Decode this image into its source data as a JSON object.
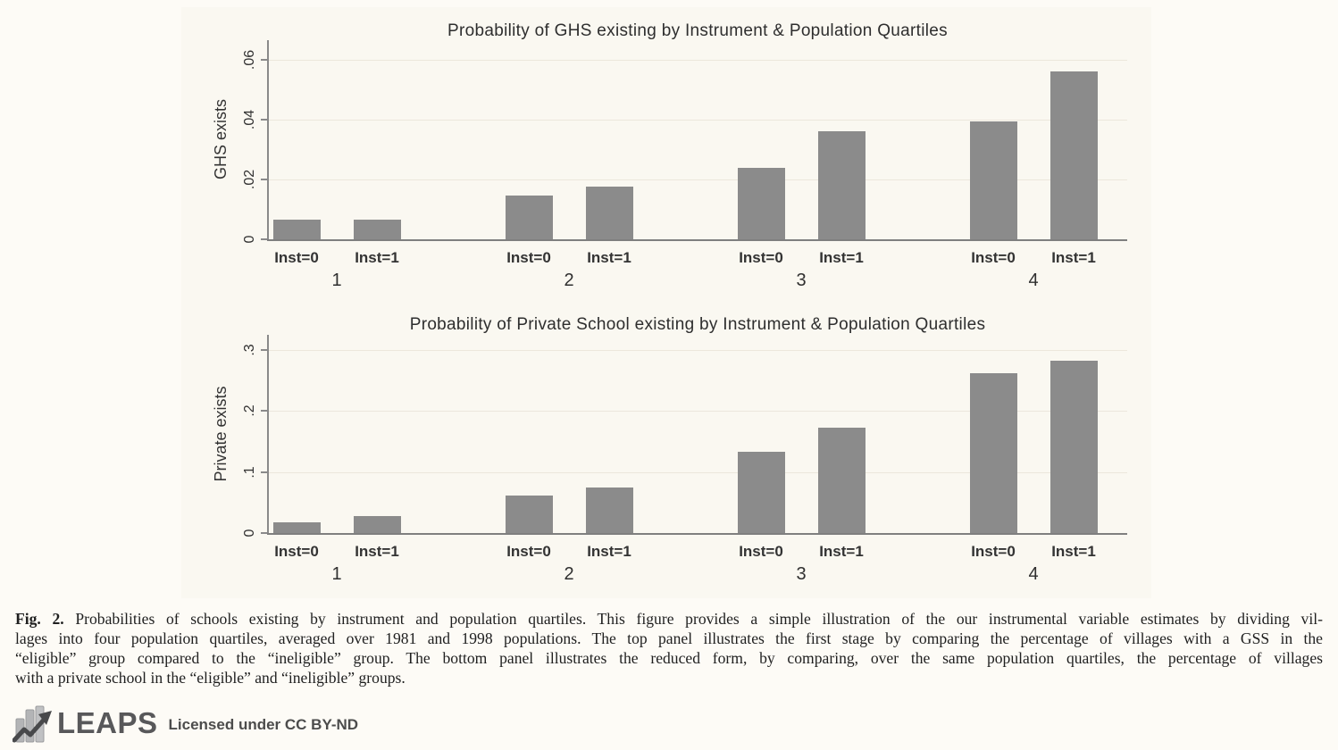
{
  "chart_data": [
    {
      "type": "bar",
      "title": "Probability of GHS existing by Instrument & Population Quartiles",
      "ylabel": "GHS exists",
      "xlabel": "",
      "categories": [
        "1",
        "2",
        "3",
        "4"
      ],
      "series": [
        {
          "name": "Inst=0",
          "values": [
            0.0065,
            0.0145,
            0.024,
            0.0395
          ]
        },
        {
          "name": "Inst=1",
          "values": [
            0.0067,
            0.0175,
            0.036,
            0.056
          ]
        }
      ],
      "ylim": [
        0,
        0.067
      ],
      "yticks": [
        0,
        0.02,
        0.04,
        0.06
      ],
      "ytick_labels": [
        "0",
        ".02",
        ".04",
        ".06"
      ],
      "legend": "none",
      "grid": "faint horizontal gridlines at yticks",
      "bar_color": "#8b8b8b"
    },
    {
      "type": "bar",
      "title": "Probability of Private School existing by Instrument & Population Quartiles",
      "ylabel": "Private exists",
      "xlabel": "",
      "categories": [
        "1",
        "2",
        "3",
        "4"
      ],
      "series": [
        {
          "name": "Inst=0",
          "values": [
            0.017,
            0.062,
            0.133,
            0.262
          ]
        },
        {
          "name": "Inst=1",
          "values": [
            0.028,
            0.074,
            0.173,
            0.283
          ]
        }
      ],
      "ylim": [
        0,
        0.325
      ],
      "yticks": [
        0,
        0.1,
        0.2,
        0.3
      ],
      "ytick_labels": [
        "0",
        ".1",
        ".2",
        ".3"
      ],
      "legend": "none",
      "grid": "faint horizontal gridlines at yticks",
      "bar_color": "#8b8b8b"
    }
  ],
  "caption": {
    "label": "Fig. 2.",
    "lines": [
      "Probabilities of schools existing by instrument and population quartiles. This figure provides a simple illustration of the our instrumental variable estimates by dividing vil-",
      "lages into four population quartiles, averaged over 1981 and 1998 populations. The top panel illustrates the first stage by comparing the percentage of villages with a GSS in the",
      "“eligible” group compared to the “ineligible” group. The bottom panel illustrates the reduced form, by comparing, over the same population quartiles, the percentage of villages",
      "with a private school in the “eligible” and “ineligible” groups."
    ]
  },
  "footer": {
    "logo_text": "LEAPS",
    "license_text": "Licensed under CC BY-ND",
    "logo_icon": "bar-chart-with-rising-arrow"
  }
}
